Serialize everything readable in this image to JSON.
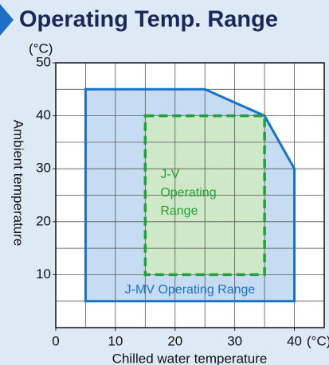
{
  "chart_data": {
    "type": "region",
    "title": "Operating Temp. Range",
    "ylabel": "Ambient temperature",
    "xlabel": "Chilled water temperature",
    "yunit": "(°C)",
    "xunit": "(°C)",
    "xlim": [
      0,
      45
    ],
    "ylim": [
      0,
      50
    ],
    "xticks": [
      0,
      10,
      20,
      30,
      40
    ],
    "yticks": [
      10,
      20,
      30,
      40,
      50
    ],
    "grid_step": 5,
    "grid": true,
    "regions": [
      {
        "name": "J-MV Operating Range",
        "label": [
          "J-MV Operating Range"
        ],
        "color": "#1a72c4",
        "fill": "#c5dcf2",
        "dash": false,
        "x": [
          5,
          25,
          35,
          40,
          40,
          5
        ],
        "y": [
          45,
          45,
          40,
          30,
          5,
          5
        ]
      },
      {
        "name": "J-V Operating Range",
        "label": [
          "J-V",
          "Operating",
          "Range"
        ],
        "color": "#22a03a",
        "fill": "#cfe9c8",
        "dash": true,
        "x": [
          15,
          35,
          35,
          15
        ],
        "y": [
          40,
          40,
          10,
          10
        ]
      }
    ]
  }
}
